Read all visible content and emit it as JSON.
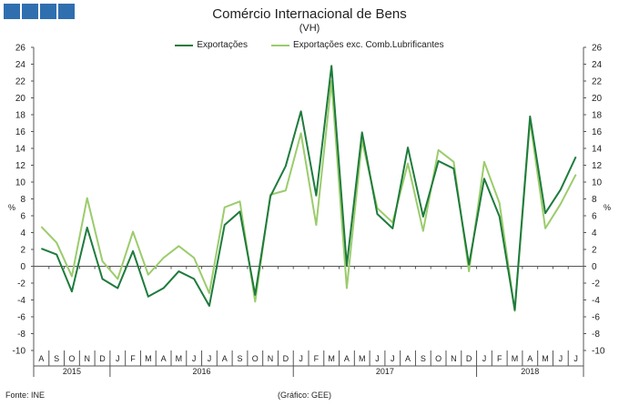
{
  "chart_data": {
    "type": "line",
    "title": "Comércio Internacional de Bens",
    "subtitle": "(VH)",
    "ylabel_left": "%",
    "ylabel_right": "%",
    "ylim": [
      -10,
      26
    ],
    "yticks": [
      -10,
      -8,
      -6,
      -4,
      -2,
      0,
      2,
      4,
      6,
      8,
      10,
      12,
      14,
      16,
      18,
      20,
      22,
      24,
      26
    ],
    "legend_position": "top-center",
    "grid": false,
    "categories": [
      "A",
      "S",
      "O",
      "N",
      "D",
      "J",
      "F",
      "M",
      "A",
      "M",
      "J",
      "J",
      "A",
      "S",
      "O",
      "N",
      "D",
      "J",
      "F",
      "M",
      "A",
      "M",
      "J",
      "J",
      "A",
      "S",
      "O",
      "N",
      "D",
      "J",
      "F",
      "M",
      "A",
      "M",
      "J",
      "J"
    ],
    "year_groups": [
      {
        "label": "2015",
        "start": 0,
        "count": 5
      },
      {
        "label": "2016",
        "start": 5,
        "count": 12
      },
      {
        "label": "2017",
        "start": 17,
        "count": 12
      },
      {
        "label": "2018",
        "start": 29,
        "count": 7
      }
    ],
    "series": [
      {
        "name": "Exportações",
        "color": "#1e7b3c",
        "values": [
          2.1,
          1.4,
          -3.0,
          4.6,
          -1.5,
          -2.6,
          1.8,
          -3.6,
          -2.6,
          -0.6,
          -1.5,
          -4.7,
          4.9,
          6.5,
          -3.4,
          8.3,
          11.9,
          18.4,
          8.4,
          23.8,
          0.1,
          15.9,
          6.2,
          4.5,
          14.1,
          5.9,
          12.5,
          11.6,
          0.2,
          10.4,
          5.9,
          -5.2,
          17.8,
          6.3,
          9.1,
          13.0
        ]
      },
      {
        "name": "Exportações exc. Comb.Lubrificantes",
        "color": "#9bcc6c",
        "values": [
          4.7,
          2.8,
          -1.2,
          8.1,
          0.6,
          -1.5,
          4.1,
          -1.0,
          1.0,
          2.4,
          1.0,
          -3.2,
          7.0,
          7.7,
          -4.2,
          8.5,
          9.0,
          15.8,
          4.9,
          22.0,
          -2.6,
          14.9,
          6.9,
          5.2,
          12.2,
          4.2,
          13.8,
          12.4,
          -0.6,
          12.4,
          7.5,
          -5.3,
          17.3,
          4.5,
          7.4,
          10.9
        ]
      }
    ]
  },
  "header": {
    "title": "Comércio Internacional de Bens",
    "subtitle": "(VH)"
  },
  "footer": {
    "source": "Fonte: INE",
    "credit": "(Gráfico: GEE)"
  }
}
